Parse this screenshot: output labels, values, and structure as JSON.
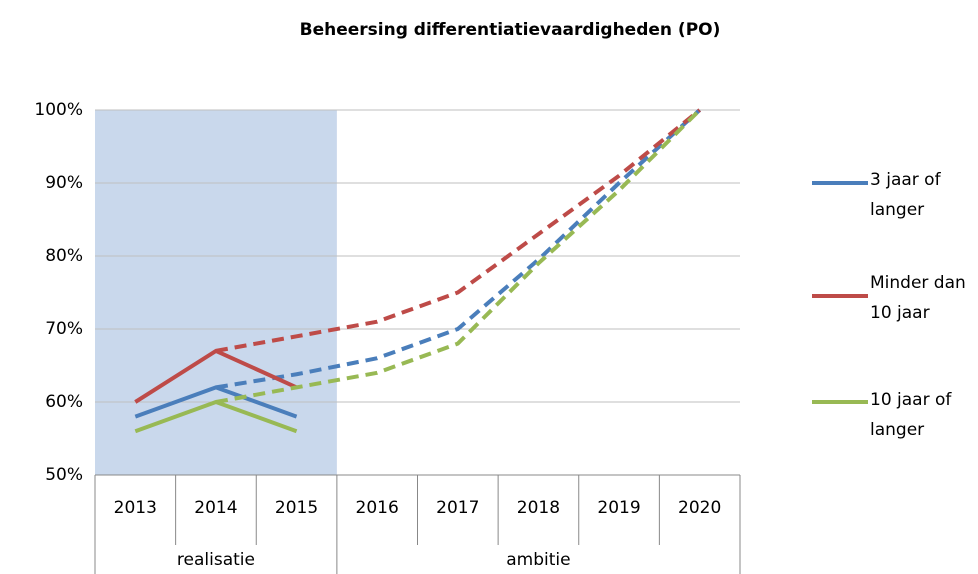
{
  "chart_data": {
    "type": "line",
    "title": "Beheersing differentiatievaardigheden (PO)",
    "categories": [
      "2013",
      "2014",
      "2015",
      "2016",
      "2017",
      "2018",
      "2019",
      "2020"
    ],
    "groups": [
      {
        "label": "realisatie",
        "span": 3,
        "shade": "#c9d8ec"
      },
      {
        "label": "ambitie",
        "span": 5
      }
    ],
    "series": [
      {
        "name": "3 jaar of langer",
        "color": "#4a7ebb",
        "values": [
          58,
          62,
          58,
          null,
          null,
          null,
          null,
          null
        ],
        "target_values": [
          null,
          62,
          63.8,
          66,
          70,
          79.5,
          90,
          100
        ]
      },
      {
        "name": "Minder dan 10 jaar",
        "color": "#be4b48",
        "values": [
          60,
          67,
          62,
          null,
          null,
          null,
          null,
          null
        ],
        "target_values": [
          null,
          67,
          69,
          71,
          75,
          83,
          91,
          100
        ]
      },
      {
        "name": "10 jaar of langer",
        "color": "#98b954",
        "values": [
          56,
          60,
          56,
          null,
          null,
          null,
          null,
          null
        ],
        "target_values": [
          null,
          60,
          62,
          64,
          68,
          79,
          89,
          100
        ]
      }
    ],
    "ylim": [
      50,
      100
    ],
    "yticks": [
      {
        "value": 50,
        "label": "50%"
      },
      {
        "value": 60,
        "label": "60%"
      },
      {
        "value": 70,
        "label": "70%"
      },
      {
        "value": 80,
        "label": "80%"
      },
      {
        "value": 90,
        "label": "90%"
      },
      {
        "value": 100,
        "label": "100%"
      }
    ],
    "grid": true,
    "legend": "right"
  }
}
